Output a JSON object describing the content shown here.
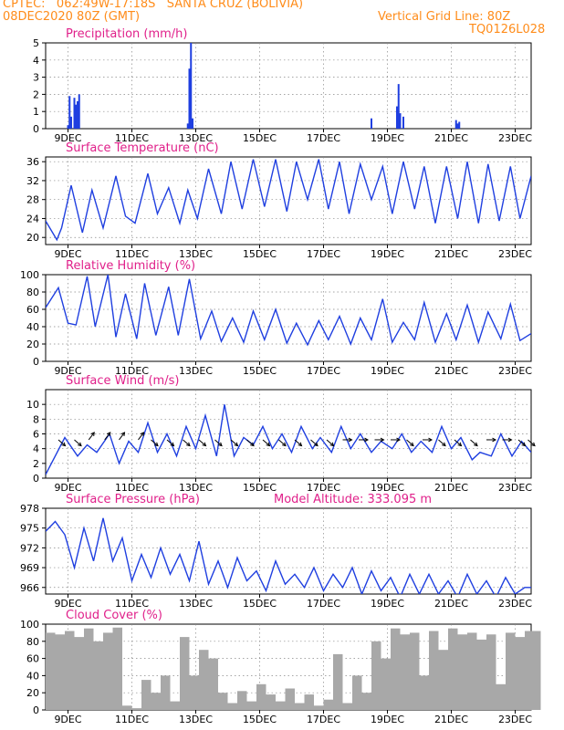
{
  "header": {
    "line1": "CPTEC:   062:49W-17:18S   SANTA CRUZ (BOLIVIA)",
    "line2": "08DEC2020 80Z (GMT)",
    "grid_note": "Vertical Grid Line: 80Z",
    "code": "TQ0126L028"
  },
  "colors": {
    "header": "#ff8c1a",
    "title": "#e0208a",
    "line": "#1f3fe0",
    "bar": "#1f3fe0",
    "cloud": "#a8a8a8"
  },
  "x_ticks": [
    "9DEC",
    "11DEC",
    "13DEC",
    "15DEC",
    "17DEC",
    "19DEC",
    "21DEC",
    "23DEC"
  ],
  "chart_data": [
    {
      "type": "bar",
      "title": "Precipitation (mm/h)",
      "ylim": [
        0,
        5
      ],
      "yticks": [
        0,
        1,
        2,
        3,
        4,
        5
      ],
      "x_unit": "days since 08DEC2020 08Z",
      "x": [
        0.7,
        0.75,
        0.8,
        0.9,
        0.95,
        1.0,
        1.05,
        4.45,
        4.5,
        4.55,
        4.6,
        10.2,
        11.0,
        11.05,
        11.1,
        11.2,
        12.85,
        12.9,
        12.95
      ],
      "values": [
        0.2,
        1.9,
        0.7,
        1.8,
        1.4,
        1.6,
        2.0,
        0.3,
        3.5,
        5.0,
        0.6,
        0.6,
        1.3,
        2.6,
        0.9,
        0.7,
        0.5,
        0.3,
        0.4
      ],
      "xlabel": "",
      "ylabel": ""
    },
    {
      "type": "line",
      "title": "Surface Temperature (nC)",
      "ylim": [
        18.5,
        37
      ],
      "yticks": [
        20,
        24,
        28,
        32,
        36
      ],
      "x_unit": "days since 08DEC2020 08Z",
      "x": [
        0,
        0.35,
        0.5,
        0.8,
        1.15,
        1.45,
        1.8,
        2.2,
        2.5,
        2.8,
        3.2,
        3.5,
        3.85,
        4.2,
        4.45,
        4.75,
        5.1,
        5.5,
        5.8,
        6.15,
        6.5,
        6.85,
        7.2,
        7.55,
        7.85,
        8.2,
        8.55,
        8.85,
        9.2,
        9.5,
        9.85,
        10.2,
        10.55,
        10.85,
        11.2,
        11.55,
        11.85,
        12.2,
        12.55,
        12.9,
        13.2,
        13.55,
        13.85,
        14.2,
        14.55,
        14.85,
        15.2
      ],
      "values": [
        23.5,
        19.5,
        22,
        31,
        21,
        30,
        22,
        33,
        24.5,
        23,
        33.5,
        25,
        30.5,
        23,
        30,
        24,
        34.5,
        25,
        36,
        26,
        36.5,
        26.5,
        36.5,
        25.5,
        36,
        28,
        36.5,
        26,
        36,
        25,
        35.5,
        28,
        35,
        25,
        36,
        26,
        35,
        23,
        35,
        24,
        36,
        23,
        35.5,
        23.5,
        35,
        24,
        33
      ],
      "xlabel": "",
      "ylabel": ""
    },
    {
      "type": "line",
      "title": "Relative Humidity (%)",
      "ylim": [
        0,
        100
      ],
      "yticks": [
        0,
        20,
        40,
        60,
        80,
        100
      ],
      "x_unit": "days since 08DEC2020 08Z",
      "x": [
        0,
        0.4,
        0.7,
        0.95,
        1.3,
        1.55,
        1.95,
        2.2,
        2.5,
        2.85,
        3.1,
        3.45,
        3.85,
        4.15,
        4.5,
        4.85,
        5.2,
        5.5,
        5.85,
        6.2,
        6.5,
        6.85,
        7.2,
        7.55,
        7.85,
        8.2,
        8.55,
        8.85,
        9.2,
        9.55,
        9.85,
        10.2,
        10.55,
        10.85,
        11.2,
        11.55,
        11.85,
        12.2,
        12.55,
        12.85,
        13.2,
        13.55,
        13.85,
        14.25,
        14.55,
        14.85,
        15.2
      ],
      "values": [
        62,
        85,
        44,
        42,
        98,
        40,
        100,
        28,
        78,
        26,
        90,
        30,
        86,
        30,
        95,
        26,
        58,
        23,
        50,
        22,
        58,
        25,
        60,
        21,
        44,
        19,
        47,
        25,
        52,
        20,
        50,
        25,
        72,
        22,
        45,
        25,
        68,
        22,
        55,
        25,
        65,
        22,
        57,
        26,
        66,
        24,
        32
      ],
      "xlabel": "",
      "ylabel": ""
    },
    {
      "type": "line",
      "title": "Surface Wind (m/s)",
      "ylim": [
        0,
        12
      ],
      "yticks": [
        0,
        2,
        4,
        6,
        8,
        10
      ],
      "x_unit": "days since 08DEC2020 08Z",
      "x": [
        0,
        0.3,
        0.6,
        1.0,
        1.3,
        1.6,
        2.0,
        2.3,
        2.6,
        2.9,
        3.2,
        3.5,
        3.8,
        4.1,
        4.4,
        4.7,
        5.0,
        5.35,
        5.6,
        5.9,
        6.2,
        6.5,
        6.8,
        7.1,
        7.4,
        7.7,
        8.0,
        8.35,
        8.6,
        8.95,
        9.25,
        9.55,
        9.85,
        10.2,
        10.5,
        10.85,
        11.15,
        11.45,
        11.75,
        12.1,
        12.4,
        12.7,
        13.0,
        13.35,
        13.6,
        13.95,
        14.25,
        14.6,
        14.9,
        15.2
      ],
      "values": [
        0.5,
        3,
        5.5,
        3,
        4.5,
        3.5,
        6,
        2,
        5,
        3.5,
        7.5,
        3.5,
        6,
        3,
        7,
        4,
        8.5,
        3,
        10,
        3,
        5.5,
        4.5,
        7,
        4,
        6,
        3.5,
        7,
        4,
        5.5,
        3.5,
        7,
        4,
        6,
        3.5,
        5,
        4,
        6,
        3.5,
        5,
        3.5,
        7,
        4,
        5.5,
        2.5,
        3.5,
        3,
        6,
        3,
        5,
        3.5
      ],
      "xlabel": "",
      "ylabel": ""
    },
    {
      "type": "line",
      "title": "Surface Pressure (hPa)",
      "annotation": "Model Altitude: 333.095  m",
      "ylim": [
        965,
        978
      ],
      "yticks": [
        966,
        969,
        972,
        975,
        978
      ],
      "x_unit": "days since 08DEC2020 08Z",
      "x": [
        0,
        0.3,
        0.6,
        0.9,
        1.2,
        1.5,
        1.8,
        2.1,
        2.4,
        2.7,
        3.0,
        3.3,
        3.6,
        3.9,
        4.2,
        4.5,
        4.8,
        5.1,
        5.4,
        5.7,
        6.0,
        6.3,
        6.6,
        6.9,
        7.2,
        7.5,
        7.8,
        8.1,
        8.4,
        8.7,
        9.0,
        9.3,
        9.6,
        9.9,
        10.2,
        10.5,
        10.8,
        11.1,
        11.4,
        11.7,
        12.0,
        12.3,
        12.6,
        12.9,
        13.2,
        13.5,
        13.8,
        14.1,
        14.4,
        14.7,
        15.0,
        15.2
      ],
      "values": [
        974.5,
        976,
        974,
        969,
        975,
        970,
        976.5,
        970,
        973.5,
        967,
        971,
        967.5,
        972,
        968,
        971,
        967,
        973,
        966.5,
        970,
        966,
        970.5,
        967,
        968.5,
        965.5,
        970,
        966.5,
        968,
        966,
        969,
        965.5,
        968,
        966,
        969,
        965,
        968.5,
        965.5,
        967.5,
        964.5,
        968,
        965,
        968,
        965,
        967,
        964.5,
        968,
        965,
        967,
        964.5,
        967.5,
        965,
        966,
        966
      ],
      "xlabel": "",
      "ylabel": ""
    },
    {
      "type": "area",
      "title": "Cloud Cover (%)",
      "ylim": [
        0,
        100
      ],
      "yticks": [
        0,
        20,
        40,
        60,
        80,
        100
      ],
      "x_unit": "days since 08DEC2020 08Z",
      "x": [
        0,
        0.3,
        0.6,
        0.9,
        1.2,
        1.5,
        1.8,
        2.1,
        2.4,
        2.7,
        3.0,
        3.3,
        3.6,
        3.9,
        4.2,
        4.5,
        4.8,
        5.1,
        5.4,
        5.7,
        6.0,
        6.3,
        6.6,
        6.9,
        7.2,
        7.5,
        7.8,
        8.1,
        8.4,
        8.7,
        9.0,
        9.3,
        9.6,
        9.9,
        10.2,
        10.5,
        10.8,
        11.1,
        11.4,
        11.7,
        12.0,
        12.3,
        12.6,
        12.9,
        13.2,
        13.5,
        13.8,
        14.1,
        14.4,
        14.7,
        15.0,
        15.2
      ],
      "values": [
        90,
        88,
        92,
        85,
        95,
        80,
        90,
        96,
        5,
        2,
        35,
        20,
        40,
        10,
        85,
        40,
        70,
        60,
        20,
        8,
        22,
        10,
        30,
        18,
        10,
        25,
        8,
        18,
        5,
        12,
        65,
        8,
        40,
        20,
        80,
        60,
        95,
        88,
        90,
        40,
        92,
        70,
        95,
        88,
        90,
        82,
        88,
        30,
        90,
        85,
        92,
        92
      ],
      "xlabel": "",
      "ylabel": ""
    }
  ],
  "wind_arrows": [
    {
      "x": 0.4,
      "dir": "down-right"
    },
    {
      "x": 0.9,
      "dir": "down-right"
    },
    {
      "x": 1.35,
      "dir": "up-right"
    },
    {
      "x": 1.85,
      "dir": "up-right"
    },
    {
      "x": 2.3,
      "dir": "up-right"
    },
    {
      "x": 2.9,
      "dir": "up-right"
    },
    {
      "x": 3.3,
      "dir": "down-right"
    },
    {
      "x": 3.8,
      "dir": "down-right"
    },
    {
      "x": 4.3,
      "dir": "down-right"
    },
    {
      "x": 4.8,
      "dir": "down-right"
    },
    {
      "x": 5.3,
      "dir": "down-right"
    },
    {
      "x": 5.8,
      "dir": "down-right"
    },
    {
      "x": 6.3,
      "dir": "down-right"
    },
    {
      "x": 6.8,
      "dir": "down-right"
    },
    {
      "x": 7.3,
      "dir": "down-right"
    },
    {
      "x": 7.8,
      "dir": "down-right"
    },
    {
      "x": 8.3,
      "dir": "down-right"
    },
    {
      "x": 8.8,
      "dir": "down-right"
    },
    {
      "x": 9.3,
      "dir": "right"
    },
    {
      "x": 9.8,
      "dir": "right"
    },
    {
      "x": 10.3,
      "dir": "right"
    },
    {
      "x": 10.8,
      "dir": "right"
    },
    {
      "x": 11.3,
      "dir": "down-right"
    },
    {
      "x": 11.8,
      "dir": "right"
    },
    {
      "x": 12.3,
      "dir": "down-right"
    },
    {
      "x": 12.8,
      "dir": "down-right"
    },
    {
      "x": 13.3,
      "dir": "down-right"
    },
    {
      "x": 13.8,
      "dir": "right"
    },
    {
      "x": 14.3,
      "dir": "right"
    },
    {
      "x": 14.8,
      "dir": "down-right"
    },
    {
      "x": 15.1,
      "dir": "down-right"
    }
  ]
}
